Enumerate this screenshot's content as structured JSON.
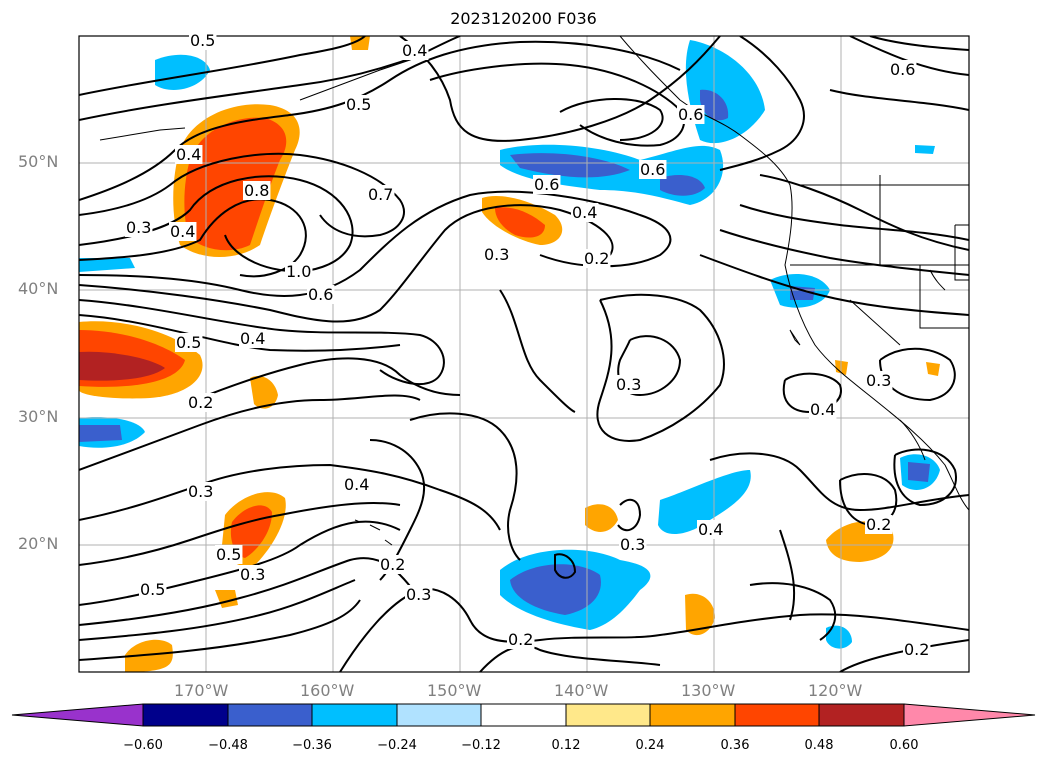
{
  "title": "2023120200 F036",
  "lat_labels": [
    "50°N",
    "40°N",
    "30°N",
    "20°N"
  ],
  "lon_labels": [
    "170°W",
    "160°W",
    "150°W",
    "140°W",
    "130°W",
    "120°W"
  ],
  "colorbar": {
    "ticks": [
      "−0.60",
      "−0.48",
      "−0.36",
      "−0.24",
      "−0.12",
      "0.12",
      "0.24",
      "0.36",
      "0.48",
      "0.60"
    ],
    "colors": [
      "#9932cc",
      "#00008b",
      "#3a5fcd",
      "#00bfff",
      "#b0e2ff",
      "#ffffff",
      "#ffe88a",
      "#ffa500",
      "#ff4500",
      "#b22222",
      "#ff88aa"
    ]
  },
  "contour_labels": [
    "0.5",
    "0.4",
    "0.5",
    "0.6",
    "0.4",
    "0.8",
    "0.7",
    "0.3",
    "0.4",
    "1.0",
    "0.6",
    "0.6",
    "0.4",
    "0.3",
    "0.2",
    "0.6",
    "0.5",
    "0.4",
    "0.2",
    "0.3",
    "0.3",
    "0.4",
    "0.4",
    "0.5",
    "0.3",
    "0.3",
    "0.2",
    "0.3",
    "0.4",
    "0.2",
    "0.5",
    "0.3",
    "0.2",
    "0.2",
    "0.6"
  ]
}
